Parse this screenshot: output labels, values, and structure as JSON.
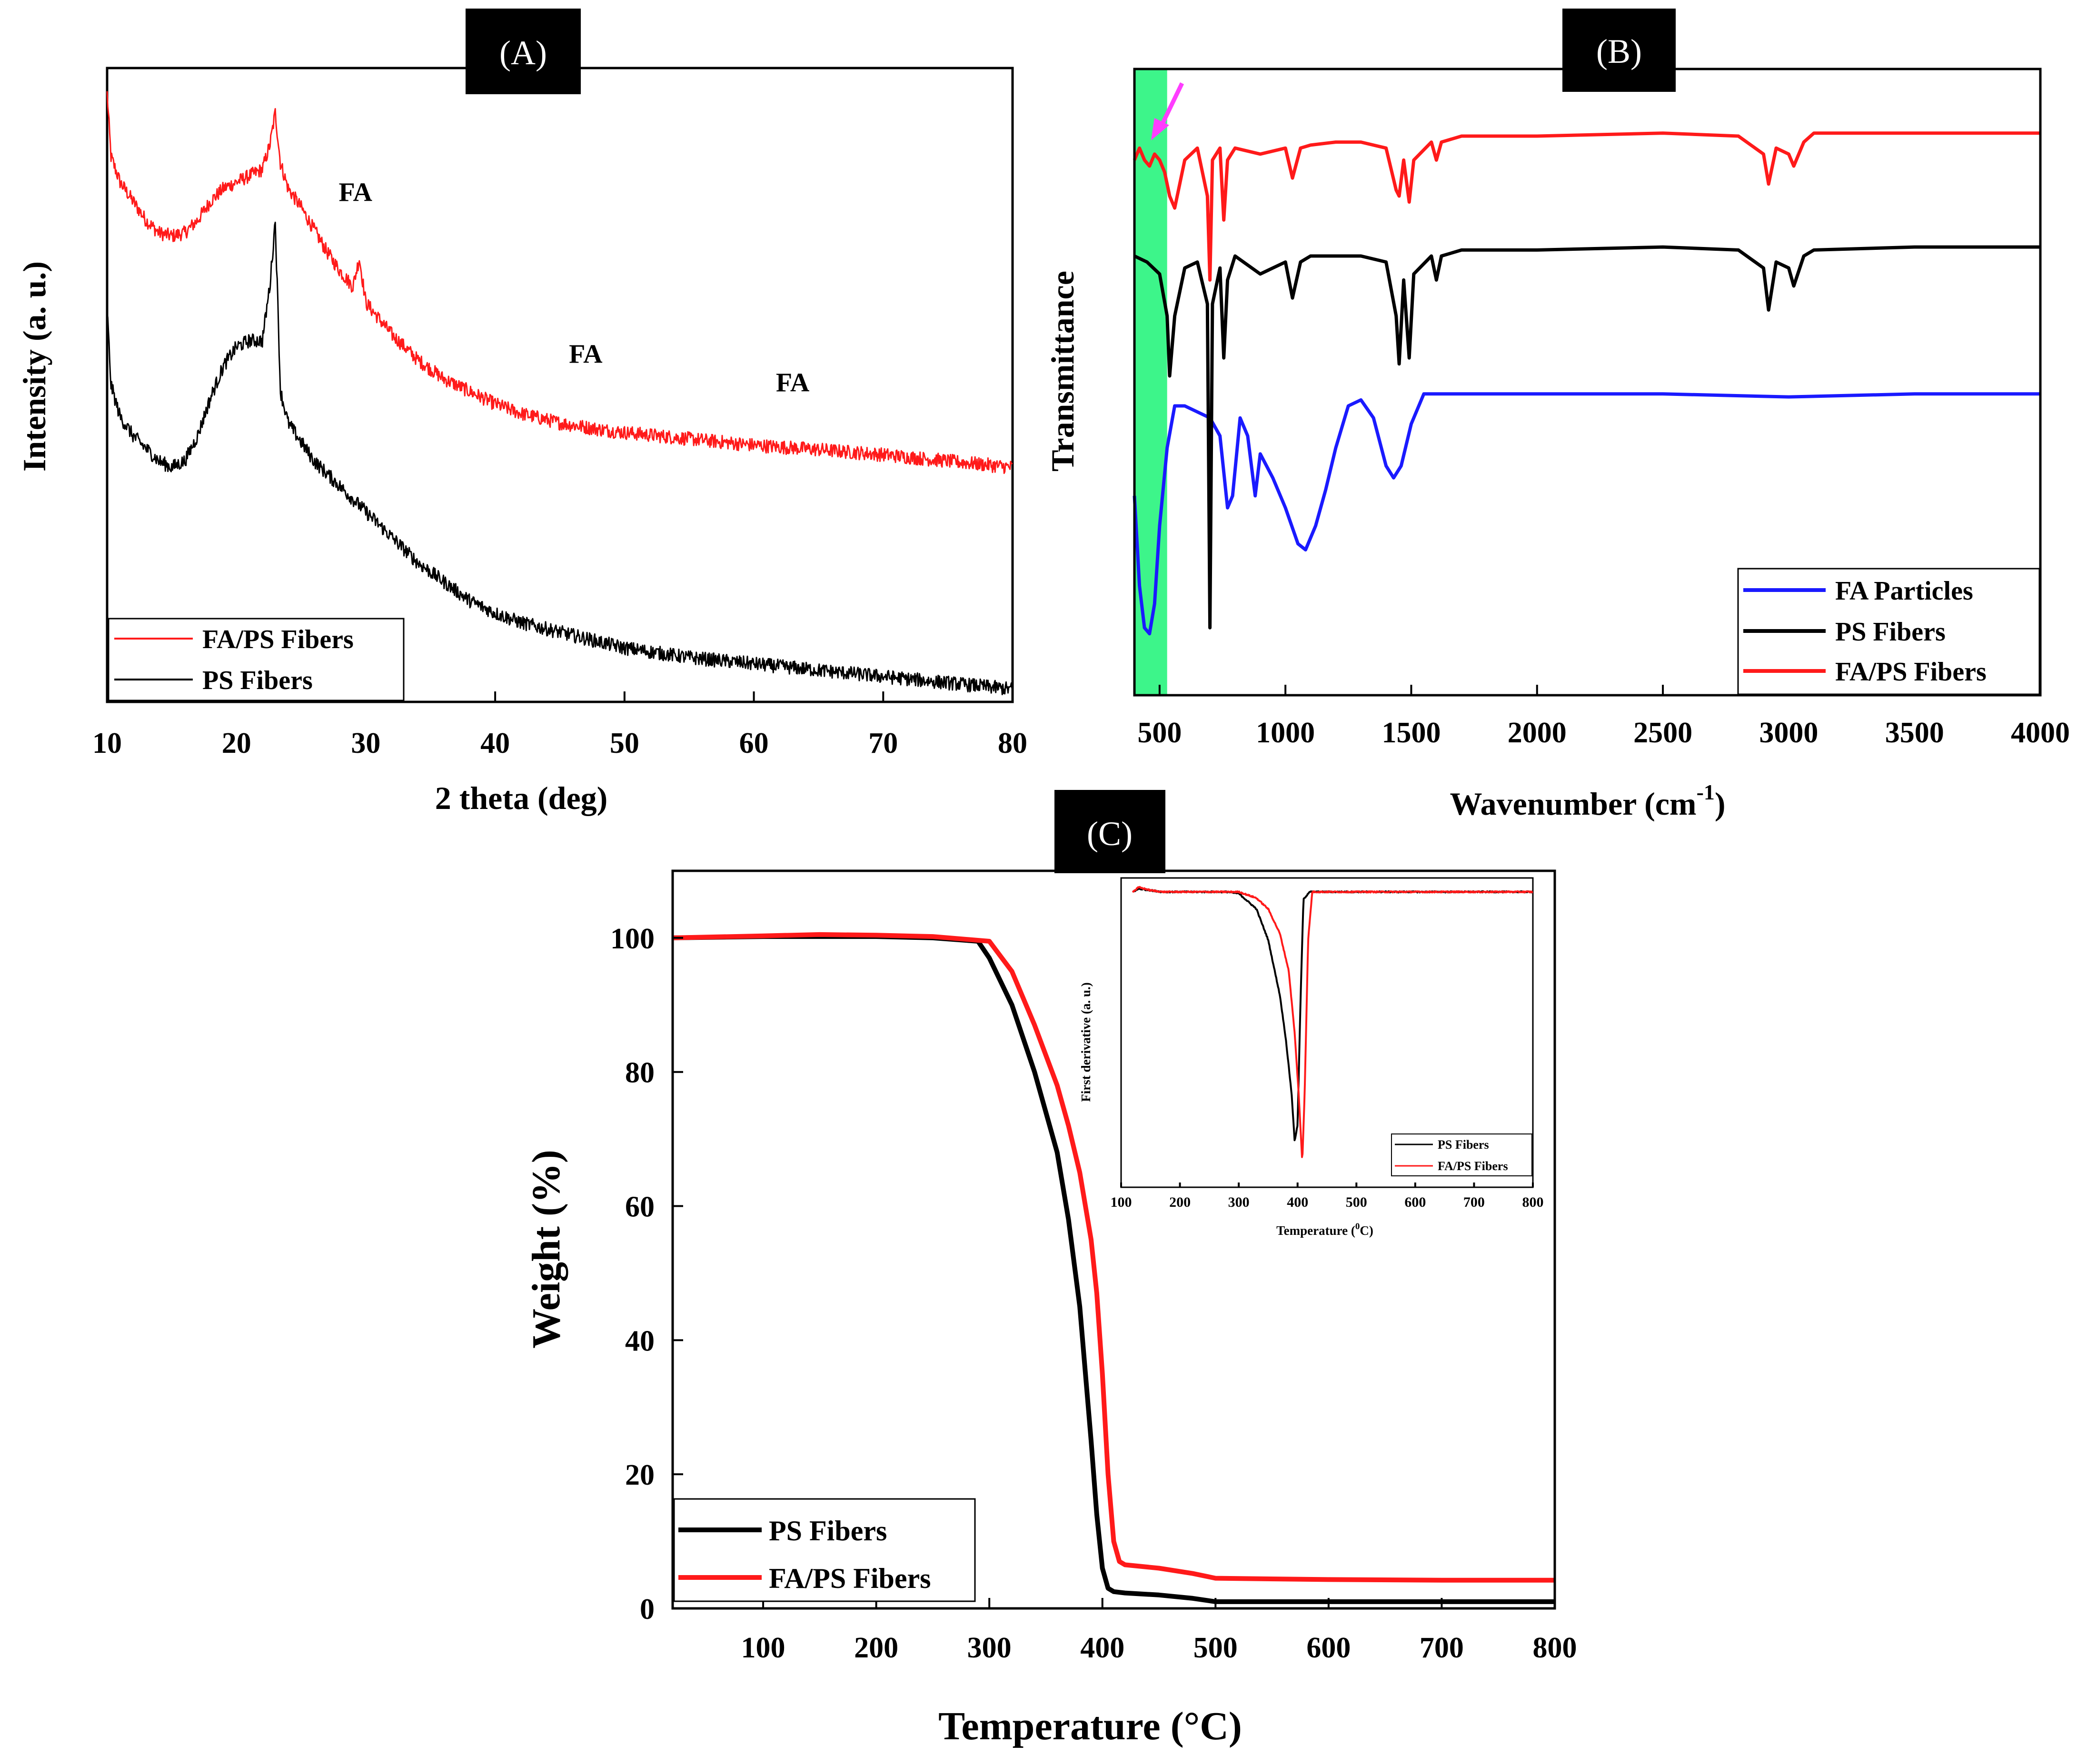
{
  "colors": {
    "red": "#ff1a1a",
    "black": "#000000",
    "blue": "#1a1aff",
    "highlight": "#3df58a",
    "arrow": "#ff3dff"
  },
  "chart_data": [
    {
      "panel": "(A)",
      "type": "line",
      "xlabel": "2 theta (deg)",
      "ylabel": "Intensity (a. u.)",
      "xlim": [
        10,
        80
      ],
      "xticks": [
        10,
        20,
        30,
        40,
        50,
        60,
        70,
        80
      ],
      "ylim": [
        0,
        1
      ],
      "legend": "bottom-left",
      "series": [
        {
          "name": "FA/PS Fibers",
          "color": "#ff1a1a",
          "x": [
            10,
            10.3,
            11,
            12,
            13,
            14,
            15,
            16,
            17,
            18,
            19,
            20,
            21,
            22,
            22.6,
            23,
            23.4,
            24,
            25,
            26,
            27,
            28,
            29,
            29.5,
            30,
            31,
            32,
            34,
            36,
            38,
            40,
            42,
            45,
            48,
            50,
            55,
            60,
            65,
            70,
            75,
            80
          ],
          "y": [
            0.96,
            0.86,
            0.82,
            0.79,
            0.76,
            0.74,
            0.735,
            0.74,
            0.76,
            0.79,
            0.81,
            0.82,
            0.83,
            0.84,
            0.88,
            0.93,
            0.85,
            0.81,
            0.78,
            0.745,
            0.71,
            0.68,
            0.655,
            0.7,
            0.63,
            0.605,
            0.58,
            0.54,
            0.51,
            0.49,
            0.47,
            0.455,
            0.44,
            0.43,
            0.425,
            0.415,
            0.405,
            0.398,
            0.39,
            0.38,
            0.37
          ]
        },
        {
          "name": "PS Fibers",
          "color": "#000000",
          "x": [
            10,
            10.3,
            11,
            12,
            13,
            14,
            15,
            16,
            17,
            18,
            19,
            20,
            21,
            22,
            22.6,
            23,
            23.4,
            24,
            25,
            26,
            28,
            30,
            32,
            34,
            36,
            38,
            40,
            42,
            45,
            48,
            50,
            55,
            60,
            65,
            70,
            75,
            80
          ],
          "y": [
            0.62,
            0.5,
            0.45,
            0.42,
            0.4,
            0.38,
            0.37,
            0.38,
            0.42,
            0.48,
            0.53,
            0.56,
            0.57,
            0.57,
            0.66,
            0.76,
            0.49,
            0.44,
            0.41,
            0.38,
            0.34,
            0.3,
            0.26,
            0.22,
            0.19,
            0.16,
            0.14,
            0.125,
            0.11,
            0.095,
            0.085,
            0.07,
            0.06,
            0.05,
            0.04,
            0.03,
            0.02
          ]
        }
      ],
      "annotations": [
        {
          "text": "FA",
          "x": 29.2,
          "y": 0.79
        },
        {
          "text": "FA",
          "x": 47,
          "y": 0.535
        },
        {
          "text": "FA",
          "x": 63,
          "y": 0.49
        }
      ]
    },
    {
      "panel": "(B)",
      "type": "line",
      "xlabel": "Wavenumber (cm-1)",
      "xlabel_main": "Wavenumber (cm",
      "xlabel_sup": "-1",
      "xlabel_close": ")",
      "ylabel": "Transmittance",
      "xlim": [
        400,
        4000
      ],
      "xticks": [
        500,
        1000,
        1500,
        2000,
        2500,
        3000,
        3500,
        4000
      ],
      "ylim": [
        0,
        1
      ],
      "legend": "bottom-right",
      "highlight_band": [
        400,
        530
      ],
      "series": [
        {
          "name": "FA Particles",
          "color": "#1a1aff",
          "x": [
            400,
            420,
            440,
            460,
            480,
            500,
            530,
            560,
            600,
            650,
            700,
            740,
            770,
            790,
            820,
            850,
            880,
            900,
            950,
            1000,
            1050,
            1080,
            1120,
            1160,
            1200,
            1250,
            1300,
            1350,
            1400,
            1430,
            1460,
            1500,
            1550,
            1600,
            2000,
            2500,
            3000,
            3500,
            4000
          ],
          "y": [
            0.3,
            0.15,
            0.08,
            0.07,
            0.12,
            0.25,
            0.38,
            0.45,
            0.45,
            0.44,
            0.43,
            0.4,
            0.28,
            0.3,
            0.43,
            0.4,
            0.3,
            0.37,
            0.33,
            0.28,
            0.22,
            0.21,
            0.25,
            0.31,
            0.38,
            0.45,
            0.46,
            0.43,
            0.35,
            0.33,
            0.35,
            0.42,
            0.47,
            0.47,
            0.47,
            0.47,
            0.465,
            0.47,
            0.47
          ]
        },
        {
          "name": "PS Fibers",
          "color": "#000000",
          "x": [
            400,
            450,
            500,
            530,
            540,
            560,
            600,
            650,
            690,
            700,
            710,
            740,
            755,
            770,
            800,
            900,
            1000,
            1028,
            1060,
            1100,
            1200,
            1300,
            1400,
            1440,
            1452,
            1470,
            1492,
            1510,
            1580,
            1600,
            1620,
            1700,
            2000,
            2500,
            2800,
            2900,
            2920,
            2950,
            3000,
            3020,
            3060,
            3100,
            3500,
            4000
          ],
          "y": [
            0.7,
            0.69,
            0.67,
            0.6,
            0.5,
            0.6,
            0.68,
            0.69,
            0.62,
            0.08,
            0.62,
            0.68,
            0.53,
            0.66,
            0.7,
            0.67,
            0.69,
            0.63,
            0.69,
            0.7,
            0.7,
            0.7,
            0.69,
            0.6,
            0.52,
            0.66,
            0.53,
            0.67,
            0.7,
            0.66,
            0.7,
            0.71,
            0.71,
            0.715,
            0.71,
            0.68,
            0.61,
            0.69,
            0.68,
            0.65,
            0.7,
            0.71,
            0.715,
            0.715
          ]
        },
        {
          "name": "FA/PS Fibers",
          "color": "#ff1a1a",
          "x": [
            400,
            420,
            440,
            460,
            480,
            500,
            520,
            540,
            560,
            600,
            650,
            690,
            700,
            710,
            740,
            755,
            770,
            800,
            900,
            1000,
            1028,
            1060,
            1100,
            1200,
            1300,
            1400,
            1440,
            1452,
            1470,
            1492,
            1510,
            1580,
            1600,
            1620,
            1700,
            2000,
            2500,
            2800,
            2900,
            2920,
            2950,
            3000,
            3020,
            3060,
            3100,
            3500,
            4000
          ],
          "y": [
            0.86,
            0.88,
            0.86,
            0.85,
            0.87,
            0.86,
            0.84,
            0.8,
            0.78,
            0.86,
            0.88,
            0.8,
            0.66,
            0.86,
            0.88,
            0.76,
            0.86,
            0.88,
            0.87,
            0.88,
            0.83,
            0.88,
            0.885,
            0.89,
            0.89,
            0.88,
            0.81,
            0.8,
            0.86,
            0.79,
            0.86,
            0.89,
            0.86,
            0.89,
            0.9,
            0.9,
            0.905,
            0.9,
            0.87,
            0.82,
            0.88,
            0.87,
            0.85,
            0.89,
            0.905,
            0.905,
            0.905
          ]
        }
      ]
    },
    {
      "panel": "(C)",
      "type": "line",
      "xlabel": "Temperature (°C)",
      "ylabel": "Weight (%)",
      "xlim": [
        20,
        800
      ],
      "ylim": [
        0,
        110
      ],
      "xticks": [
        100,
        200,
        300,
        400,
        500,
        600,
        700,
        800
      ],
      "yticks": [
        0,
        20,
        40,
        60,
        80,
        100
      ],
      "legend": "bottom-left",
      "series": [
        {
          "name": "PS Fibers",
          "color": "#000000",
          "x": [
            20,
            100,
            200,
            250,
            290,
            300,
            320,
            340,
            360,
            370,
            380,
            390,
            395,
            400,
            405,
            410,
            420,
            450,
            480,
            500,
            600,
            700,
            800
          ],
          "y": [
            100,
            100.2,
            100.2,
            100,
            99.5,
            97,
            90,
            80,
            68,
            58,
            45,
            25,
            14,
            6,
            3,
            2.5,
            2.3,
            2,
            1.5,
            1,
            1,
            1,
            1
          ]
        },
        {
          "name": "FA/PS Fibers",
          "color": "#ff1a1a",
          "x": [
            20,
            100,
            150,
            200,
            250,
            300,
            320,
            340,
            360,
            370,
            380,
            390,
            395,
            400,
            405,
            410,
            415,
            420,
            450,
            480,
            500,
            600,
            700,
            800
          ],
          "y": [
            100,
            100.3,
            100.5,
            100.4,
            100.2,
            99.5,
            95,
            87,
            78,
            72,
            65,
            55,
            47,
            35,
            20,
            10,
            7,
            6.5,
            6,
            5.2,
            4.5,
            4.3,
            4.2,
            4.2
          ]
        }
      ],
      "inset": {
        "type": "line",
        "xlabel": "Temperature (0C)",
        "xlabel_main": "Temperature (",
        "xlabel_sup": "0",
        "xlabel_close": "C)",
        "ylabel": "First derivative (a. u.)",
        "xlim": [
          100,
          800
        ],
        "xticks": [
          100,
          200,
          300,
          400,
          500,
          600,
          700,
          800
        ],
        "ylim": [
          0,
          1
        ],
        "legend": "bottom-right",
        "series": [
          {
            "name": "PS Fibers",
            "color": "#000000",
            "x": [
              120,
              130,
              150,
              170,
              200,
              250,
              280,
              300,
              330,
              350,
              370,
              380,
              390,
              395,
              400,
              405,
              410,
              420,
              450,
              500,
              600,
              800
            ],
            "y": [
              0.955,
              0.965,
              0.96,
              0.955,
              0.955,
              0.955,
              0.955,
              0.95,
              0.9,
              0.8,
              0.62,
              0.48,
              0.3,
              0.15,
              0.2,
              0.6,
              0.93,
              0.955,
              0.955,
              0.955,
              0.955,
              0.955
            ]
          },
          {
            "name": "FA/PS Fibers",
            "color": "#ff1a1a",
            "x": [
              120,
              130,
              150,
              170,
              200,
              250,
              280,
              300,
              330,
              350,
              370,
              385,
              395,
              402,
              408,
              412,
              418,
              425,
              450,
              500,
              600,
              800
            ],
            "y": [
              0.955,
              0.97,
              0.96,
              0.955,
              0.955,
              0.955,
              0.955,
              0.955,
              0.935,
              0.9,
              0.82,
              0.7,
              0.5,
              0.3,
              0.08,
              0.3,
              0.8,
              0.955,
              0.955,
              0.955,
              0.955,
              0.955
            ]
          }
        ]
      }
    }
  ]
}
